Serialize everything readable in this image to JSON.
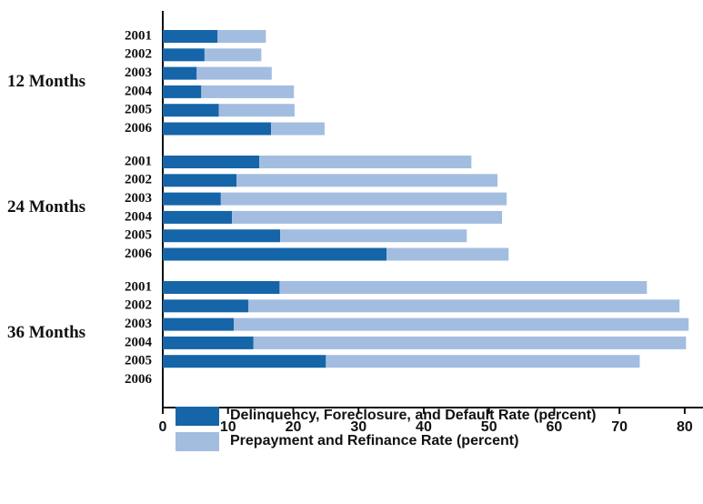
{
  "chart_data": {
    "type": "stacked-bar-horizontal",
    "groups": [
      "12 Months",
      "24 Months",
      "36 Months"
    ],
    "categories": [
      "2001",
      "2002",
      "2003",
      "2004",
      "2005",
      "2006",
      "2001",
      "2002",
      "2003",
      "2004",
      "2005",
      "2006",
      "2001",
      "2002",
      "2003",
      "2004",
      "2005",
      "2006"
    ],
    "series": [
      {
        "name": "Delinquency, Foreclosure, and Default Rate (percent)",
        "color": "#1565a8",
        "values": [
          8.4,
          6.4,
          5.2,
          5.9,
          8.6,
          16.6,
          14.8,
          11.3,
          8.9,
          10.6,
          18.0,
          34.3,
          17.9,
          13.1,
          10.9,
          13.9,
          25.0,
          null
        ]
      },
      {
        "name": "Prepayment and Refinance Rate (percent)",
        "color": "#a3bde0",
        "values": [
          7.4,
          8.7,
          11.5,
          14.2,
          11.6,
          8.2,
          32.5,
          40.0,
          43.8,
          41.4,
          28.6,
          18.7,
          56.3,
          66.1,
          69.7,
          66.3,
          48.1,
          null
        ]
      }
    ],
    "xlim": [
      0,
      82.8
    ],
    "xticks": [
      0,
      10,
      20,
      30,
      40,
      50,
      60,
      70,
      80
    ],
    "legend": "bottom"
  }
}
